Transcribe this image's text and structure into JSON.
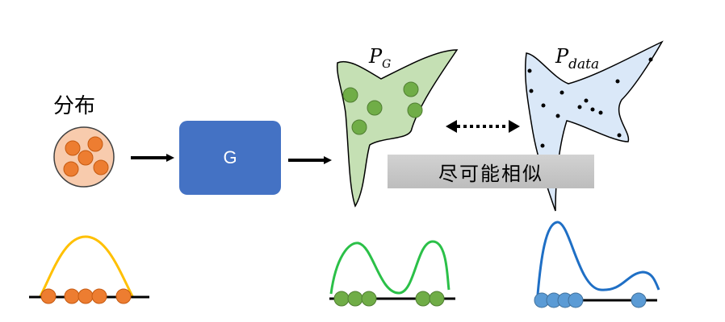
{
  "labels": {
    "distribution": "分布",
    "generator": "G",
    "similarity": "尽可能相似",
    "p_g_main": "P",
    "p_g_sub": "G",
    "p_data_main": "P",
    "p_data_sub": "data"
  },
  "colors": {
    "orange": "#ed7d31",
    "yellow_curve": "#ffc000",
    "green_fill": "#c5e0b4",
    "green_dot": "#70ad47",
    "green_curve": "#2bc048",
    "blue_fill": "#dae8f8",
    "blue_dot": "#5b9bd5",
    "blue_curve": "#1f6fc5",
    "generator_box": "#4472c4",
    "pink_circle": "#f8cbad"
  }
}
